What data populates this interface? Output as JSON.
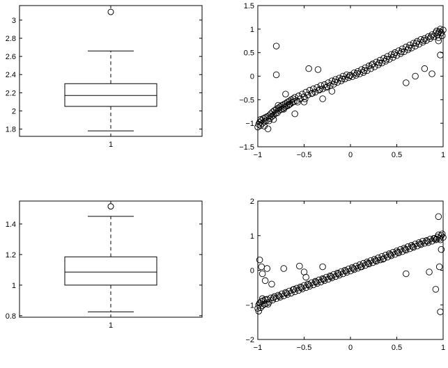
{
  "chart_data": [
    {
      "type": "box",
      "categories": [
        "1"
      ],
      "stats": {
        "min": 1.78,
        "q1": 2.05,
        "median": 2.17,
        "q3": 2.3,
        "max": 2.66
      },
      "outliers": [
        3.09
      ],
      "ylim": [
        1.72,
        3.16
      ],
      "yticks": [
        1.8,
        2,
        2.2,
        2.4,
        2.6,
        2.8,
        3
      ],
      "ytick_labels": [
        "1.8",
        "2",
        "2.2",
        "2.4",
        "2.6",
        "2.8",
        "3"
      ]
    },
    {
      "type": "scatter",
      "xlim": [
        -1,
        1
      ],
      "ylim": [
        -1.5,
        1.5
      ],
      "xticks": [
        -1,
        -0.5,
        0,
        0.5,
        1
      ],
      "xtick_labels": [
        "−1",
        "−0.5",
        "0",
        "0.5",
        "1"
      ],
      "yticks": [
        -1.5,
        -1,
        -0.5,
        0,
        0.5,
        1,
        1.5
      ],
      "ytick_labels": [
        "−1.5",
        "−1",
        "−0.5",
        "0",
        "0.5",
        "1",
        "1.5"
      ],
      "trend": {
        "slope": 1.0,
        "intercept": 0.0
      },
      "points": [
        [
          -1.0,
          -1.08
        ],
        [
          -0.99,
          -1.02
        ],
        [
          -0.98,
          -0.98
        ],
        [
          -0.97,
          -1.05
        ],
        [
          -0.96,
          -0.94
        ],
        [
          -0.95,
          -1.0
        ],
        [
          -0.94,
          -0.9
        ],
        [
          -0.93,
          -0.97
        ],
        [
          -0.92,
          -0.88
        ],
        [
          -0.91,
          -0.95
        ],
        [
          -0.9,
          -0.86
        ],
        [
          -0.89,
          -1.12
        ],
        [
          -0.88,
          -0.84
        ],
        [
          -0.87,
          -0.9
        ],
        [
          -0.86,
          -0.8
        ],
        [
          -0.85,
          -0.86
        ],
        [
          -0.84,
          -0.76
        ],
        [
          -0.83,
          -0.83
        ],
        [
          -0.82,
          -0.73
        ],
        [
          -0.81,
          -0.79
        ],
        [
          -0.8,
          -0.7
        ],
        [
          -0.79,
          -0.78
        ],
        [
          -0.78,
          -0.68
        ],
        [
          -0.77,
          -0.73
        ],
        [
          -0.76,
          -0.65
        ],
        [
          -0.75,
          -0.71
        ],
        [
          -0.74,
          -0.62
        ],
        [
          -0.73,
          -0.69
        ],
        [
          -0.72,
          -0.6
        ],
        [
          -0.71,
          -0.66
        ],
        [
          -0.7,
          -0.58
        ],
        [
          -0.69,
          -0.64
        ],
        [
          -0.68,
          -0.55
        ],
        [
          -0.67,
          -0.62
        ],
        [
          -0.66,
          -0.53
        ],
        [
          -0.65,
          -0.59
        ],
        [
          -0.64,
          -0.5
        ],
        [
          -0.63,
          -0.56
        ],
        [
          -0.62,
          -0.48
        ],
        [
          -0.61,
          -0.54
        ],
        [
          -0.6,
          -0.45
        ],
        [
          -0.58,
          -0.52
        ],
        [
          -0.56,
          -0.42
        ],
        [
          -0.54,
          -0.48
        ],
        [
          -0.52,
          -0.38
        ],
        [
          -0.5,
          -0.44
        ],
        [
          -0.48,
          -0.34
        ],
        [
          -0.46,
          -0.4
        ],
        [
          -0.44,
          -0.3
        ],
        [
          -0.42,
          -0.37
        ],
        [
          -0.4,
          -0.27
        ],
        [
          -0.38,
          -0.34
        ],
        [
          -0.36,
          -0.24
        ],
        [
          -0.34,
          -0.3
        ],
        [
          -0.32,
          -0.2
        ],
        [
          -0.3,
          -0.27
        ],
        [
          -0.28,
          -0.18
        ],
        [
          -0.26,
          -0.24
        ],
        [
          -0.24,
          -0.14
        ],
        [
          -0.22,
          -0.2
        ],
        [
          -0.2,
          -0.1
        ],
        [
          -0.18,
          -0.17
        ],
        [
          -0.16,
          -0.07
        ],
        [
          -0.14,
          -0.13
        ],
        [
          -0.12,
          -0.04
        ],
        [
          -0.1,
          -0.1
        ],
        [
          -0.08,
          0.0
        ],
        [
          -0.06,
          -0.06
        ],
        [
          -0.04,
          0.03
        ],
        [
          -0.02,
          -0.03
        ],
        [
          0.0,
          0.02
        ],
        [
          0.02,
          -0.01
        ],
        [
          0.04,
          0.07
        ],
        [
          0.06,
          0.02
        ],
        [
          0.08,
          0.1
        ],
        [
          0.1,
          0.05
        ],
        [
          0.12,
          0.14
        ],
        [
          0.14,
          0.08
        ],
        [
          0.16,
          0.18
        ],
        [
          0.18,
          0.12
        ],
        [
          0.2,
          0.22
        ],
        [
          0.22,
          0.16
        ],
        [
          0.24,
          0.26
        ],
        [
          0.26,
          0.2
        ],
        [
          0.28,
          0.3
        ],
        [
          0.3,
          0.24
        ],
        [
          0.32,
          0.34
        ],
        [
          0.34,
          0.28
        ],
        [
          0.36,
          0.38
        ],
        [
          0.38,
          0.32
        ],
        [
          0.4,
          0.42
        ],
        [
          0.42,
          0.36
        ],
        [
          0.44,
          0.46
        ],
        [
          0.46,
          0.4
        ],
        [
          0.48,
          0.5
        ],
        [
          0.5,
          0.44
        ],
        [
          0.52,
          0.54
        ],
        [
          0.54,
          0.48
        ],
        [
          0.56,
          0.58
        ],
        [
          0.58,
          0.52
        ],
        [
          0.6,
          0.62
        ],
        [
          0.62,
          0.56
        ],
        [
          0.64,
          0.66
        ],
        [
          0.66,
          0.6
        ],
        [
          0.68,
          0.7
        ],
        [
          0.7,
          0.64
        ],
        [
          0.72,
          0.74
        ],
        [
          0.74,
          0.68
        ],
        [
          0.76,
          0.78
        ],
        [
          0.78,
          0.72
        ],
        [
          0.8,
          0.8
        ],
        [
          0.82,
          0.76
        ],
        [
          0.84,
          0.84
        ],
        [
          0.86,
          0.8
        ],
        [
          0.88,
          0.88
        ],
        [
          0.9,
          0.84
        ],
        [
          0.92,
          0.92
        ],
        [
          0.94,
          0.88
        ],
        [
          0.96,
          0.95
        ],
        [
          0.98,
          0.92
        ],
        [
          1.0,
          0.98
        ],
        [
          0.99,
          0.86
        ],
        [
          0.97,
          1.0
        ],
        [
          0.95,
          0.82
        ],
        [
          0.93,
          0.96
        ],
        [
          -0.97,
          -0.92
        ],
        [
          -0.93,
          -1.06
        ],
        [
          -0.88,
          -0.95
        ],
        [
          -0.83,
          -0.92
        ],
        [
          -0.78,
          -0.62
        ],
        [
          -0.72,
          -0.7
        ],
        [
          -0.66,
          -0.6
        ],
        [
          -0.57,
          -0.55
        ],
        [
          -0.49,
          -0.48
        ],
        [
          -0.41,
          -0.36
        ],
        [
          -0.33,
          -0.28
        ],
        [
          -0.25,
          -0.22
        ],
        [
          -0.17,
          -0.12
        ],
        [
          -0.09,
          -0.06
        ],
        [
          -0.01,
          0.01
        ],
        [
          0.07,
          0.06
        ],
        [
          0.15,
          0.12
        ],
        [
          0.23,
          0.24
        ],
        [
          0.31,
          0.28
        ],
        [
          0.39,
          0.36
        ],
        [
          0.47,
          0.46
        ],
        [
          0.55,
          0.52
        ],
        [
          0.63,
          0.6
        ],
        [
          0.71,
          0.7
        ],
        [
          0.79,
          0.76
        ],
        [
          0.87,
          0.84
        ],
        [
          0.95,
          0.92
        ],
        [
          -0.8,
          0.64
        ],
        [
          -0.8,
          0.03
        ],
        [
          -0.7,
          -0.38
        ],
        [
          -0.45,
          0.16
        ],
        [
          -0.35,
          0.14
        ],
        [
          -0.6,
          -0.8
        ],
        [
          -0.3,
          -0.48
        ],
        [
          0.6,
          -0.14
        ],
        [
          0.7,
          0.0
        ],
        [
          0.8,
          0.16
        ],
        [
          0.88,
          0.05
        ],
        [
          0.97,
          0.45
        ],
        [
          0.95,
          0.75
        ],
        [
          -0.5,
          -0.55
        ],
        [
          -0.2,
          -0.32
        ]
      ]
    },
    {
      "type": "box",
      "categories": [
        "1"
      ],
      "stats": {
        "min": 0.825,
        "q1": 1.0,
        "median": 1.085,
        "q3": 1.185,
        "max": 1.45
      },
      "outliers": [
        1.515
      ],
      "ylim": [
        0.79,
        1.55
      ],
      "yticks": [
        0.8,
        1,
        1.2,
        1.4
      ],
      "ytick_labels": [
        "0.8",
        "1",
        "1.2",
        "1.4"
      ]
    },
    {
      "type": "scatter",
      "xlim": [
        -1,
        1
      ],
      "ylim": [
        -2,
        2
      ],
      "xticks": [
        -1,
        -0.5,
        0,
        0.5,
        1
      ],
      "xtick_labels": [
        "−1",
        "−0.5",
        "0",
        "0.5",
        "1"
      ],
      "yticks": [
        -2,
        -1,
        0,
        1,
        2
      ],
      "ytick_labels": [
        "−2",
        "−1",
        "0",
        "1",
        "2"
      ],
      "trend": {
        "slope": 1.0,
        "intercept": 0.0
      },
      "points": [
        [
          -1.0,
          -1.1
        ],
        [
          -0.99,
          -1.0
        ],
        [
          -0.98,
          -0.95
        ],
        [
          -0.97,
          -1.08
        ],
        [
          -0.96,
          -0.9
        ],
        [
          -0.95,
          -1.02
        ],
        [
          -0.94,
          -0.88
        ],
        [
          -0.93,
          -0.98
        ],
        [
          -0.92,
          -0.85
        ],
        [
          -0.91,
          -0.96
        ],
        [
          -0.9,
          -0.84
        ],
        [
          -0.88,
          -0.92
        ],
        [
          -0.86,
          -0.8
        ],
        [
          -0.84,
          -0.86
        ],
        [
          -0.82,
          -0.76
        ],
        [
          -0.8,
          -0.82
        ],
        [
          -0.78,
          -0.72
        ],
        [
          -0.76,
          -0.78
        ],
        [
          -0.74,
          -0.68
        ],
        [
          -0.72,
          -0.74
        ],
        [
          -0.7,
          -0.64
        ],
        [
          -0.68,
          -0.7
        ],
        [
          -0.66,
          -0.6
        ],
        [
          -0.64,
          -0.66
        ],
        [
          -0.62,
          -0.56
        ],
        [
          -0.6,
          -0.62
        ],
        [
          -0.58,
          -0.52
        ],
        [
          -0.56,
          -0.58
        ],
        [
          -0.54,
          -0.48
        ],
        [
          -0.52,
          -0.54
        ],
        [
          -0.5,
          -0.44
        ],
        [
          -0.48,
          -0.5
        ],
        [
          -0.46,
          -0.4
        ],
        [
          -0.44,
          -0.46
        ],
        [
          -0.42,
          -0.36
        ],
        [
          -0.4,
          -0.42
        ],
        [
          -0.38,
          -0.32
        ],
        [
          -0.36,
          -0.38
        ],
        [
          -0.34,
          -0.28
        ],
        [
          -0.32,
          -0.34
        ],
        [
          -0.3,
          -0.24
        ],
        [
          -0.28,
          -0.3
        ],
        [
          -0.26,
          -0.2
        ],
        [
          -0.24,
          -0.26
        ],
        [
          -0.22,
          -0.16
        ],
        [
          -0.2,
          -0.22
        ],
        [
          -0.18,
          -0.12
        ],
        [
          -0.16,
          -0.18
        ],
        [
          -0.14,
          -0.08
        ],
        [
          -0.12,
          -0.14
        ],
        [
          -0.1,
          -0.04
        ],
        [
          -0.08,
          -0.1
        ],
        [
          -0.06,
          0.0
        ],
        [
          -0.04,
          -0.06
        ],
        [
          -0.02,
          0.04
        ],
        [
          0.0,
          -0.02
        ],
        [
          0.02,
          0.08
        ],
        [
          0.04,
          0.02
        ],
        [
          0.06,
          0.12
        ],
        [
          0.08,
          0.06
        ],
        [
          0.1,
          0.16
        ],
        [
          0.12,
          0.1
        ],
        [
          0.14,
          0.2
        ],
        [
          0.16,
          0.14
        ],
        [
          0.18,
          0.24
        ],
        [
          0.2,
          0.18
        ],
        [
          0.22,
          0.28
        ],
        [
          0.24,
          0.22
        ],
        [
          0.26,
          0.32
        ],
        [
          0.28,
          0.26
        ],
        [
          0.3,
          0.36
        ],
        [
          0.32,
          0.3
        ],
        [
          0.34,
          0.4
        ],
        [
          0.36,
          0.34
        ],
        [
          0.38,
          0.44
        ],
        [
          0.4,
          0.38
        ],
        [
          0.42,
          0.48
        ],
        [
          0.44,
          0.42
        ],
        [
          0.46,
          0.52
        ],
        [
          0.48,
          0.46
        ],
        [
          0.5,
          0.56
        ],
        [
          0.52,
          0.5
        ],
        [
          0.54,
          0.6
        ],
        [
          0.56,
          0.54
        ],
        [
          0.58,
          0.64
        ],
        [
          0.6,
          0.58
        ],
        [
          0.62,
          0.68
        ],
        [
          0.64,
          0.62
        ],
        [
          0.66,
          0.72
        ],
        [
          0.68,
          0.66
        ],
        [
          0.7,
          0.76
        ],
        [
          0.72,
          0.7
        ],
        [
          0.74,
          0.8
        ],
        [
          0.76,
          0.74
        ],
        [
          0.78,
          0.84
        ],
        [
          0.8,
          0.78
        ],
        [
          0.82,
          0.86
        ],
        [
          0.84,
          0.8
        ],
        [
          0.86,
          0.9
        ],
        [
          0.88,
          0.84
        ],
        [
          0.9,
          0.92
        ],
        [
          0.92,
          0.88
        ],
        [
          0.94,
          0.96
        ],
        [
          0.96,
          0.92
        ],
        [
          0.98,
          1.0
        ],
        [
          1.0,
          0.95
        ],
        [
          0.99,
          1.05
        ],
        [
          0.97,
          0.88
        ],
        [
          0.95,
          1.02
        ],
        [
          0.93,
          0.9
        ],
        [
          -0.99,
          -1.18
        ],
        [
          -0.95,
          -0.82
        ],
        [
          -0.89,
          -0.98
        ],
        [
          -0.83,
          -0.8
        ],
        [
          -0.77,
          -0.75
        ],
        [
          -0.69,
          -0.66
        ],
        [
          -0.61,
          -0.55
        ],
        [
          -0.53,
          -0.5
        ],
        [
          -0.45,
          -0.42
        ],
        [
          -0.37,
          -0.34
        ],
        [
          -0.29,
          -0.26
        ],
        [
          -0.21,
          -0.18
        ],
        [
          -0.13,
          -0.1
        ],
        [
          -0.05,
          -0.02
        ],
        [
          0.03,
          0.05
        ],
        [
          0.11,
          0.1
        ],
        [
          0.19,
          0.2
        ],
        [
          0.27,
          0.28
        ],
        [
          0.35,
          0.32
        ],
        [
          0.43,
          0.45
        ],
        [
          0.51,
          0.52
        ],
        [
          0.59,
          0.6
        ],
        [
          0.67,
          0.68
        ],
        [
          0.75,
          0.76
        ],
        [
          0.83,
          0.84
        ],
        [
          0.91,
          0.92
        ],
        [
          -0.98,
          0.3
        ],
        [
          -0.96,
          0.1
        ],
        [
          -0.95,
          -0.1
        ],
        [
          -0.92,
          -0.3
        ],
        [
          -0.9,
          0.05
        ],
        [
          -0.85,
          -0.4
        ],
        [
          -0.72,
          0.05
        ],
        [
          -0.55,
          0.12
        ],
        [
          -0.5,
          -0.05
        ],
        [
          -0.48,
          -0.2
        ],
        [
          -0.3,
          0.1
        ],
        [
          0.6,
          -0.1
        ],
        [
          0.85,
          -0.05
        ],
        [
          0.95,
          1.55
        ],
        [
          0.97,
          -1.2
        ],
        [
          0.96,
          0.1
        ],
        [
          0.92,
          -0.55
        ],
        [
          0.98,
          0.6
        ]
      ]
    }
  ]
}
